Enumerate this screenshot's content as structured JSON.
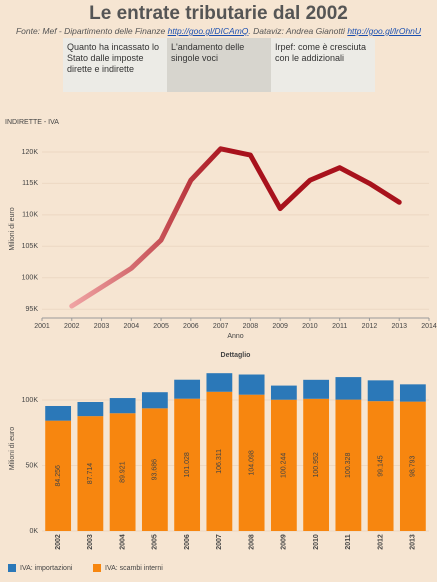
{
  "header": {
    "title": "Le entrate tributarie dal 2002",
    "source": "Fonte: Mef - Dipartimento delle Finanze",
    "source_link": "http://goo.gl/DICAmQ",
    "dataviz": ". Dataviz: Andrea Gianotti",
    "dataviz_link": "http://goo.gl/lrOhnU"
  },
  "tabs": [
    "Quanto ha incassato lo Stato dalle imposte dirette e indirette",
    "L'andamento delle singole voci",
    "Irpef: come è cresciuta con le addizionali"
  ],
  "active_tab": 1,
  "chart_data": [
    {
      "type": "line",
      "title": "INDIRETTE - IVA",
      "x_label": "Anno",
      "y_label": "Milioni di euro",
      "x": [
        2002,
        2003,
        2004,
        2005,
        2006,
        2007,
        2008,
        2009,
        2010,
        2011,
        2012,
        2013
      ],
      "values": [
        95500,
        98500,
        101500,
        106000,
        115500,
        120500,
        119500,
        111000,
        115500,
        117500,
        115000,
        112000
      ],
      "color_range": [
        "#efa3a3",
        "#a8121c"
      ],
      "xlim": [
        2001,
        2014
      ],
      "xticks": [
        2001,
        2002,
        2003,
        2004,
        2005,
        2006,
        2007,
        2008,
        2009,
        2010,
        2011,
        2012,
        2013,
        2014
      ],
      "ylim": [
        93600,
        121900
      ],
      "yticks": [
        {
          "value": 95000,
          "label": "95K"
        },
        {
          "value": 100000,
          "label": "100K"
        },
        {
          "value": 105000,
          "label": "105K"
        },
        {
          "value": 110000,
          "label": "110K"
        },
        {
          "value": 115000,
          "label": "115K"
        },
        {
          "value": 120000,
          "label": "120K"
        }
      ],
      "grid": true
    },
    {
      "type": "stacked_bar",
      "title": "Dettaglio",
      "y_label": "Milioni di euro",
      "categories": [
        "2002",
        "2003",
        "2004",
        "2005",
        "2006",
        "2007",
        "2008",
        "2009",
        "2010",
        "2011",
        "2012",
        "2013"
      ],
      "series": [
        {
          "name": "IVA: importazioni",
          "color": "#2b78b8",
          "values": [
            11200,
            10800,
            11600,
            12300,
            14500,
            14200,
            15400,
            10800,
            14500,
            17200,
            15900,
            13200
          ]
        },
        {
          "name": "IVA: scambi interni",
          "color": "#f7860f",
          "values": [
            84256,
            87714,
            89921,
            93686,
            101028,
            106311,
            104098,
            100244,
            100952,
            100328,
            99145,
            98793
          ],
          "value_labels": [
            "84.256",
            "87.714",
            "89.921",
            "93.686",
            "101.028",
            "106.311",
            "104.098",
            "100.244",
            "100.952",
            "100.328",
            "99.145",
            "98.793"
          ]
        }
      ],
      "ylim": [
        0,
        126000
      ],
      "yticks": [
        {
          "value": 0,
          "label": "0K"
        },
        {
          "value": 50000,
          "label": "50K"
        },
        {
          "value": 100000,
          "label": "100K"
        }
      ],
      "grid": true,
      "legend": "bottom-left"
    }
  ]
}
